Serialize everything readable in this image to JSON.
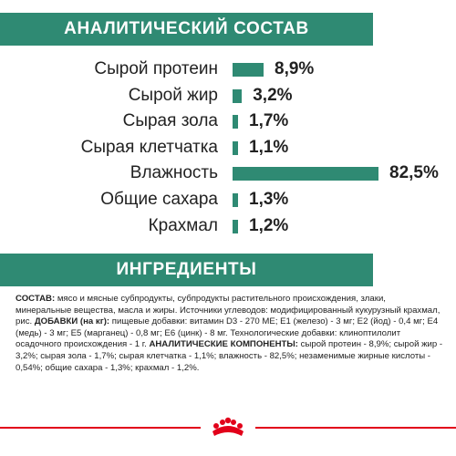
{
  "analysis": {
    "title": "АНАЛИТИЧЕСКИЙ СОСТАВ",
    "rows": [
      {
        "label": "Сырой протеин",
        "value": "8,9%",
        "number": 8.9
      },
      {
        "label": "Сырой жир",
        "value": "3,2%",
        "number": 3.2
      },
      {
        "label": "Сырая зола",
        "value": "1,7%",
        "number": 1.7
      },
      {
        "label": "Сырая клетчатка",
        "value": "1,1%",
        "number": 1.1
      },
      {
        "label": "Влажность",
        "value": "82,5%",
        "number": 82.5
      },
      {
        "label": "Общие сахара",
        "value": "1,3%",
        "number": 1.3
      },
      {
        "label": "Крахмал",
        "value": "1,2%",
        "number": 1.2
      }
    ],
    "bar_color": "#2f8a73"
  },
  "ingredients": {
    "title": "ИНГРЕДИЕНТЫ",
    "composition_label": "СОСТАВ:",
    "composition_text": " мясо и мясные субпродукты, субпродукты растительного происхождения, злаки, минеральные вещества, масла и жиры. Источники углеводов: модифицированный кукурузный крахмал, рис. ",
    "additives_label": "ДОБАВКИ (на кг):",
    "additives_text": " пищевые добавки: витамин D3 - 270 МЕ; E1 (железо) - 3 мг; E2 (йод) - 0,4 мг; E4 (медь) - 3 мг; E5 (марганец) - 0,8 мг; E6 (цинк) - 8 мг. Технологические добавки: клиноптилолит осадочного происхождения - 1 г. ",
    "analytical_label": "АНАЛИТИЧЕСКИЕ КОМПОНЕНТЫ:",
    "analytical_text": " сырой протеин - 8,9%; сырой жир - 3,2%; сырая зола - 1,7%; сырая клетчатка - 1,1%; влажность - 82,5%; незаменимые жирные кислоты - 0,54%; общие сахара - 1,3%; крахмал - 1,2%."
  },
  "footer": {
    "accent_color": "#e2001a",
    "logo_icon": "crown-logo-icon"
  }
}
